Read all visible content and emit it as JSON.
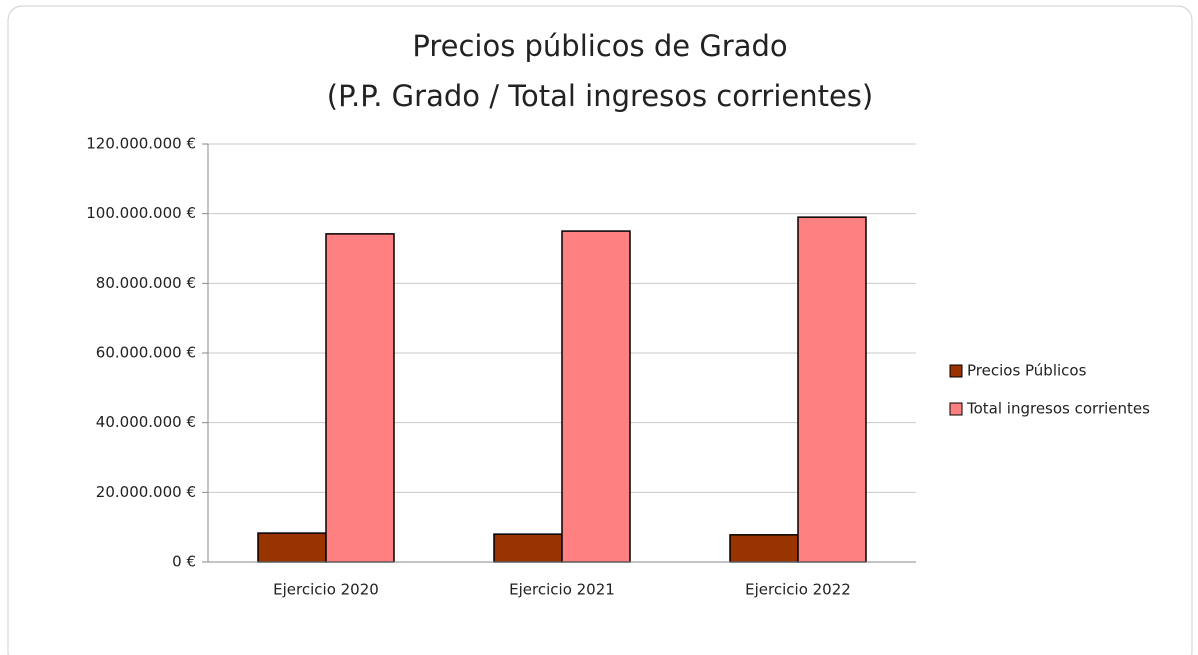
{
  "chart_data": {
    "type": "bar",
    "title": "Precios públicos de Grado",
    "subtitle": "(P.P. Grado / Total ingresos corrientes)",
    "categories": [
      "Ejercicio 2020",
      "Ejercicio 2021",
      "Ejercicio 2022"
    ],
    "series": [
      {
        "name": "Precios Públicos",
        "color": "#993300",
        "values": [
          8300000,
          8000000,
          7800000
        ]
      },
      {
        "name": "Total ingresos corrientes",
        "color": "#ff8080",
        "values": [
          94200000,
          95000000,
          99000000
        ]
      }
    ],
    "ylim": [
      0,
      120000000
    ],
    "yticks": [
      {
        "value": 0,
        "label": "0 €"
      },
      {
        "value": 20000000,
        "label": "20.000.000 €"
      },
      {
        "value": 40000000,
        "label": "40.000.000 €"
      },
      {
        "value": 60000000,
        "label": "60.000.000 €"
      },
      {
        "value": 80000000,
        "label": "80.000.000 €"
      },
      {
        "value": 100000000,
        "label": "100.000.000 €"
      },
      {
        "value": 120000000,
        "label": "120.000.000 €"
      }
    ],
    "grid": true,
    "legend": "right"
  }
}
